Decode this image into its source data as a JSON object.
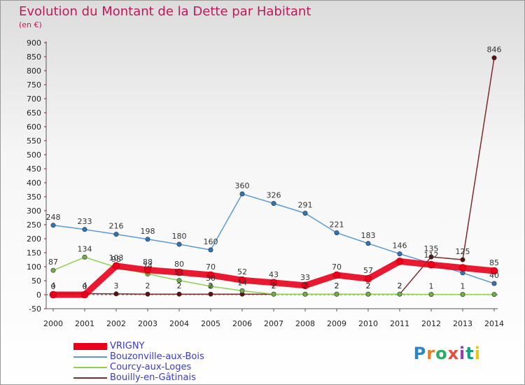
{
  "title": "Evolution du Montant de la Dette par Habitant",
  "subtitle": "(en €)",
  "brand": {
    "letters": [
      "P",
      "r",
      "o",
      "x",
      "i",
      "t",
      "i"
    ],
    "colors": [
      "#2e86c1",
      "#e67e22",
      "#27ae60",
      "#e74c3c",
      "#8e44ad",
      "#16a085",
      "#f1c40f"
    ]
  },
  "chart_data": {
    "type": "line",
    "x": [
      "2000",
      "2001",
      "2002",
      "2003",
      "2004",
      "2005",
      "2006",
      "2007",
      "2008",
      "2009",
      "2010",
      "2011",
      "2012",
      "2013",
      "2014"
    ],
    "ylim": [
      -50,
      900
    ],
    "yticks": [
      -50,
      0,
      50,
      100,
      150,
      200,
      250,
      300,
      350,
      400,
      450,
      500,
      550,
      600,
      650,
      700,
      750,
      800,
      850,
      900
    ],
    "grid": false,
    "legend_position": "bottom-left",
    "series": [
      {
        "name": "VRIGNY",
        "color": "#e8001c",
        "marker": "#e8001c",
        "values": [
          0,
          0,
          103,
          88,
          80,
          70,
          52,
          43,
          33,
          70,
          57,
          119,
          107,
          96,
          85
        ],
        "labels": [
          "0",
          "0",
          "103",
          "88",
          "80",
          "70",
          "52",
          "43",
          "33",
          "70",
          "57",
          "",
          "",
          "",
          "85"
        ]
      },
      {
        "name": "Bouzonville-aux-Bois",
        "color": "#5b9bd5",
        "marker": "#2e75b6",
        "values": [
          248,
          233,
          216,
          198,
          180,
          160,
          360,
          326,
          291,
          221,
          183,
          146,
          112,
          78,
          40
        ],
        "labels": [
          "248",
          "233",
          "216",
          "198",
          "180",
          "160",
          "360",
          "326",
          "291",
          "221",
          "183",
          "146",
          "112",
          "",
          "40"
        ]
      },
      {
        "name": "Courcy-aux-Loges",
        "color": "#92d050",
        "marker": "#70ad47",
        "values": [
          87,
          134,
          98,
          74,
          51,
          30,
          14,
          2,
          2,
          2,
          2,
          2,
          1,
          1,
          1
        ],
        "labels": [
          "87",
          "134",
          "98",
          "74",
          "51",
          "30",
          "14",
          "2",
          "2",
          "2",
          "2",
          "2",
          "1",
          "1",
          ""
        ]
      },
      {
        "name": "Bouilly-en-Gâtinais",
        "color": "#7b2c2c",
        "marker": "#5c1010",
        "values": [
          4,
          4,
          3,
          2,
          2,
          2,
          2,
          2,
          2,
          2,
          2,
          2,
          135,
          125,
          846
        ],
        "labels": [
          "4",
          "4",
          "3",
          "2",
          "2",
          "2",
          "",
          "2",
          "",
          "2",
          "2",
          "2",
          "135",
          "125",
          "846"
        ]
      }
    ]
  }
}
